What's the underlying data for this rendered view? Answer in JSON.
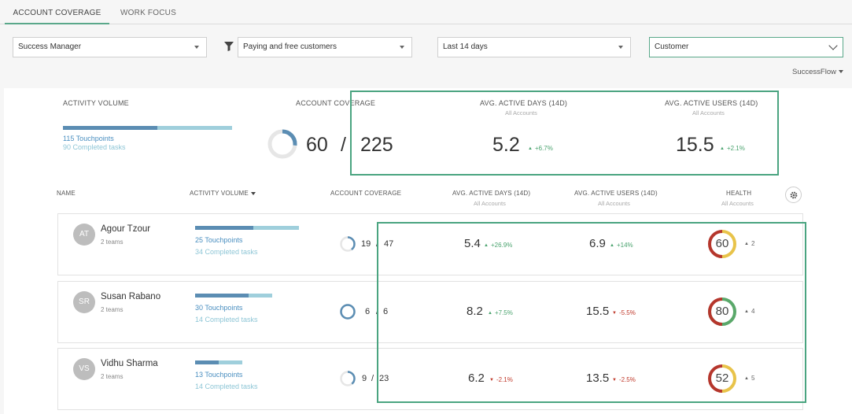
{
  "tabs": [
    {
      "label": "ACCOUNT COVERAGE",
      "active": true
    },
    {
      "label": "WORK FOCUS",
      "active": false
    }
  ],
  "filters": {
    "manager": "Success Manager",
    "customers": "Paying and free customers",
    "period": "Last 14 days",
    "level": "Customer",
    "flow": "SuccessFlow"
  },
  "summary": {
    "activity_label": "ACTIVITY VOLUME",
    "activity_fraction": 0.56,
    "touchpoints": "115 Touchpoints",
    "completed": "90 Completed tasks",
    "coverage_label": "ACCOUNT COVERAGE",
    "coverage_value": "60",
    "coverage_total": "225",
    "slash": "/",
    "coverage_fraction": 0.267,
    "active_days_label": "AVG. ACTIVE DAYS (14D)",
    "active_days_sub": "All Accounts",
    "active_days_value": "5.2",
    "active_days_delta": "+6.7%",
    "active_users_label": "AVG. ACTIVE USERS (14D)",
    "active_users_sub": "All Accounts",
    "active_users_value": "15.5",
    "active_users_delta": "+2.1%"
  },
  "columns": {
    "name": "NAME",
    "activity": "ACTIVITY VOLUME",
    "coverage": "ACCOUNT COVERAGE",
    "active_days": "AVG. ACTIVE DAYS (14D)",
    "active_days_sub": "All Accounts",
    "active_users": "AVG. ACTIVE USERS (14D)",
    "active_users_sub": "All Accounts",
    "health": "HEALTH",
    "health_sub": "All Accounts"
  },
  "rows": [
    {
      "initials": "AT",
      "name": "Agour Tzour",
      "teams": "2 teams",
      "activity_fraction": 0.56,
      "touchpoints": "25 Touchpoints",
      "completed": "34 Completed tasks",
      "coverage_value": "19",
      "coverage_total": "47",
      "coverage_fraction": 0.4,
      "active_days": "5.4",
      "active_days_delta": "+26.9%",
      "active_days_dir": "up",
      "active_users": "6.9",
      "active_users_delta": "+14%",
      "active_users_dir": "up",
      "health": "60",
      "health_delta": "2",
      "health_dir": "up",
      "health_fraction": 0.6
    },
    {
      "initials": "SR",
      "name": "Susan Rabano",
      "teams": "2 teams",
      "activity_fraction": 0.69,
      "touchpoints": "30 Touchpoints",
      "completed": "14 Completed tasks",
      "coverage_value": "6",
      "coverage_total": "6",
      "coverage_fraction": 1.0,
      "active_days": "8.2",
      "active_days_delta": "+7.5%",
      "active_days_dir": "up",
      "active_users": "15.5",
      "active_users_delta": "-5.5%",
      "active_users_dir": "down",
      "health": "80",
      "health_delta": "4",
      "health_dir": "up",
      "health_fraction": 0.8
    },
    {
      "initials": "VS",
      "name": "Vidhu Sharma",
      "teams": "2 teams",
      "activity_fraction": 0.5,
      "touchpoints": "13 Touchpoints",
      "completed": "14 Completed tasks",
      "coverage_value": "9",
      "coverage_total": "23",
      "coverage_fraction": 0.39,
      "active_days": "6.2",
      "active_days_delta": "-2.1%",
      "active_days_dir": "down",
      "active_users": "13.5",
      "active_users_delta": "-2.5%",
      "active_users_dir": "down",
      "health": "52",
      "health_delta": "5",
      "health_dir": "up",
      "health_fraction": 0.52
    }
  ],
  "colors": {
    "accent": "#4aa480",
    "up": "#4aa36e",
    "down": "#c0392b",
    "health_red": "#b5362c",
    "health_yellow": "#e8c34a",
    "health_green": "#5aa86a",
    "coverage_ring": "#5b8db3"
  }
}
